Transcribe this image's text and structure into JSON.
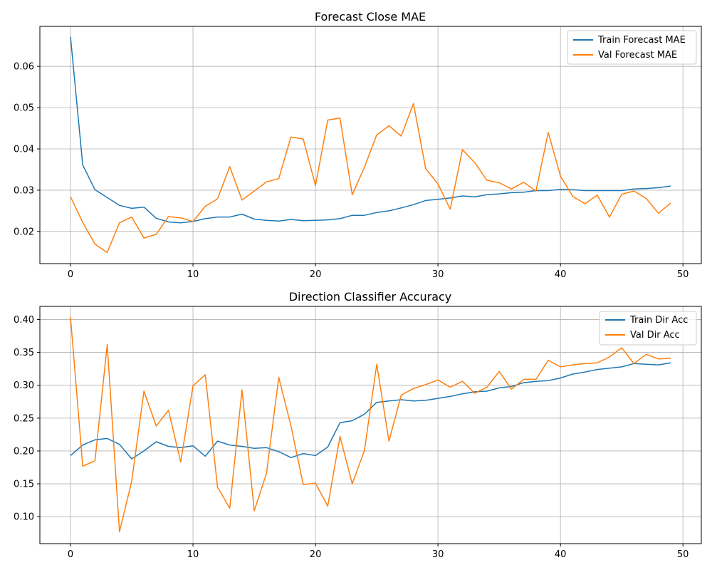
{
  "colors": {
    "train": "#1f77b4",
    "val": "#ff7f0e",
    "grid": "#b0b0b0"
  },
  "chart_data": [
    {
      "type": "line",
      "title": "Forecast Close MAE",
      "xlabel": "",
      "ylabel": "",
      "xlim": [
        -2.5,
        51.5
      ],
      "ylim": [
        0.0122,
        0.0697
      ],
      "xticks": [
        0,
        10,
        20,
        30,
        40,
        50
      ],
      "yticks": [
        0.02,
        0.03,
        0.04,
        0.05,
        0.06
      ],
      "ytick_labels": [
        "0.02",
        "0.03",
        "0.04",
        "0.05",
        "0.06"
      ],
      "grid": true,
      "legend": "top-right",
      "x": [
        0,
        1,
        2,
        3,
        4,
        5,
        6,
        7,
        8,
        9,
        10,
        11,
        12,
        13,
        14,
        15,
        16,
        17,
        18,
        19,
        20,
        21,
        22,
        23,
        24,
        25,
        26,
        27,
        28,
        29,
        30,
        31,
        32,
        33,
        34,
        35,
        36,
        37,
        38,
        39,
        40,
        41,
        42,
        43,
        44,
        45,
        46,
        47,
        48,
        49
      ],
      "series": [
        {
          "name": "Train Forecast MAE",
          "color": "#1f77b4",
          "values": [
            0.0672,
            0.0361,
            0.0301,
            0.0282,
            0.0263,
            0.0256,
            0.0259,
            0.0232,
            0.0223,
            0.0221,
            0.0224,
            0.0231,
            0.0235,
            0.0235,
            0.0242,
            0.023,
            0.0227,
            0.0225,
            0.0229,
            0.0226,
            0.0227,
            0.0228,
            0.0231,
            0.0239,
            0.0239,
            0.0246,
            0.025,
            0.0257,
            0.0265,
            0.0275,
            0.0278,
            0.0281,
            0.0286,
            0.0284,
            0.0289,
            0.0291,
            0.0294,
            0.0295,
            0.0299,
            0.0299,
            0.0302,
            0.0301,
            0.0299,
            0.0299,
            0.0299,
            0.0299,
            0.0303,
            0.0304,
            0.0306,
            0.031
          ]
        },
        {
          "name": "Val Forecast MAE",
          "color": "#ff7f0e",
          "values": [
            0.0284,
            0.0222,
            0.0169,
            0.0149,
            0.0221,
            0.0235,
            0.0184,
            0.0193,
            0.0236,
            0.0233,
            0.0224,
            0.0261,
            0.0279,
            0.0357,
            0.0276,
            0.0298,
            0.032,
            0.0328,
            0.0429,
            0.0424,
            0.0311,
            0.047,
            0.0475,
            0.0289,
            0.0356,
            0.0434,
            0.0456,
            0.0431,
            0.051,
            0.0352,
            0.0315,
            0.0254,
            0.0398,
            0.0367,
            0.0324,
            0.0318,
            0.0303,
            0.0319,
            0.0298,
            0.044,
            0.0334,
            0.0285,
            0.0267,
            0.0288,
            0.0235,
            0.029,
            0.0298,
            0.028,
            0.0244,
            0.0269
          ]
        }
      ]
    },
    {
      "type": "line",
      "title": "Direction Classifier Accuracy",
      "xlabel": "",
      "ylabel": "",
      "xlim": [
        -2.5,
        51.5
      ],
      "ylim": [
        0.059,
        0.42
      ],
      "xticks": [
        0,
        10,
        20,
        30,
        40,
        50
      ],
      "yticks": [
        0.1,
        0.15,
        0.2,
        0.25,
        0.3,
        0.35,
        0.4
      ],
      "ytick_labels": [
        "0.10",
        "0.15",
        "0.20",
        "0.25",
        "0.30",
        "0.35",
        "0.40"
      ],
      "grid": true,
      "legend": "top-right",
      "x": [
        0,
        1,
        2,
        3,
        4,
        5,
        6,
        7,
        8,
        9,
        10,
        11,
        12,
        13,
        14,
        15,
        16,
        17,
        18,
        19,
        20,
        21,
        22,
        23,
        24,
        25,
        26,
        27,
        28,
        29,
        30,
        31,
        32,
        33,
        34,
        35,
        36,
        37,
        38,
        39,
        40,
        41,
        42,
        43,
        44,
        45,
        46,
        47,
        48,
        49
      ],
      "series": [
        {
          "name": "Train Dir Acc",
          "color": "#1f77b4",
          "values": [
            0.193,
            0.209,
            0.217,
            0.219,
            0.21,
            0.188,
            0.2,
            0.214,
            0.207,
            0.205,
            0.208,
            0.192,
            0.215,
            0.209,
            0.207,
            0.204,
            0.205,
            0.199,
            0.19,
            0.196,
            0.193,
            0.206,
            0.243,
            0.246,
            0.256,
            0.274,
            0.276,
            0.278,
            0.276,
            0.277,
            0.28,
            0.283,
            0.287,
            0.29,
            0.291,
            0.296,
            0.298,
            0.304,
            0.306,
            0.307,
            0.311,
            0.317,
            0.32,
            0.324,
            0.326,
            0.328,
            0.333,
            0.332,
            0.331,
            0.334
          ]
        },
        {
          "name": "Val Dir Acc",
          "color": "#ff7f0e",
          "values": [
            0.404,
            0.177,
            0.185,
            0.362,
            0.077,
            0.154,
            0.291,
            0.238,
            0.262,
            0.183,
            0.299,
            0.316,
            0.145,
            0.113,
            0.293,
            0.109,
            0.166,
            0.312,
            0.238,
            0.149,
            0.151,
            0.116,
            0.222,
            0.15,
            0.201,
            0.332,
            0.215,
            0.285,
            0.295,
            0.301,
            0.308,
            0.297,
            0.306,
            0.288,
            0.297,
            0.321,
            0.294,
            0.309,
            0.309,
            0.338,
            0.328,
            0.331,
            0.333,
            0.334,
            0.343,
            0.357,
            0.333,
            0.347,
            0.34,
            0.341
          ]
        }
      ]
    }
  ]
}
